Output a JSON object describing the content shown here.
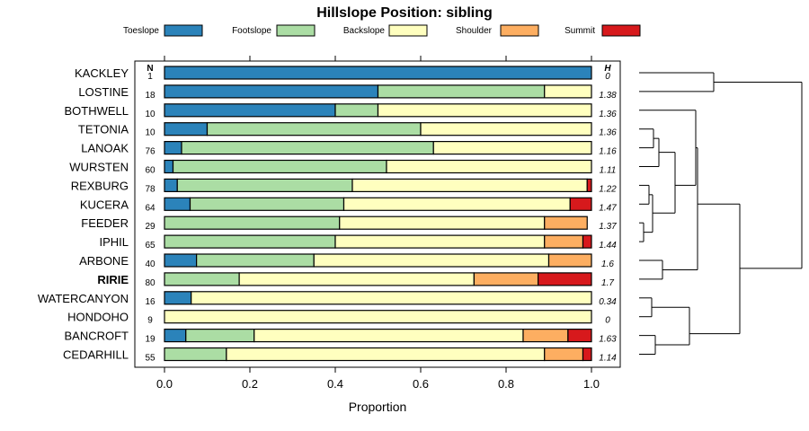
{
  "chart_data": {
    "type": "bar",
    "stacked": true,
    "orientation": "horizontal",
    "title": "Hillslope Position: sibling",
    "xlabel": "Proportion",
    "ylabel": "",
    "xlim": [
      0,
      1
    ],
    "x_ticks": [
      "0.0",
      "0.2",
      "0.4",
      "0.6",
      "0.8",
      "1.0"
    ],
    "highlighted_category": "RIRIE",
    "n_header": "N",
    "h_header": "H",
    "legend_position": "top",
    "series": [
      {
        "name": "Toeslope",
        "color": "#2b83ba"
      },
      {
        "name": "Footslope",
        "color": "#abdda4"
      },
      {
        "name": "Backslope",
        "color": "#ffffbf"
      },
      {
        "name": "Shoulder",
        "color": "#fdae61"
      },
      {
        "name": "Summit",
        "color": "#d7191c"
      }
    ],
    "categories": [
      "KACKLEY",
      "LOSTINE",
      "BOTHWELL",
      "TETONIA",
      "LANOAK",
      "WURSTEN",
      "REXBURG",
      "KUCERA",
      "FEEDER",
      "IPHIL",
      "ARBONE",
      "RIRIE",
      "WATERCANYON",
      "HONDOHO",
      "BANCROFT",
      "CEDARHILL"
    ],
    "n": [
      "1",
      "18",
      "10",
      "10",
      "76",
      "60",
      "78",
      "64",
      "29",
      "65",
      "40",
      "80",
      "16",
      "9",
      "19",
      "55"
    ],
    "h": [
      "0",
      "1.38",
      "1.36",
      "1.36",
      "1.16",
      "1.11",
      "1.22",
      "1.47",
      "1.37",
      "1.44",
      "1.6",
      "1.7",
      "0.34",
      "0",
      "1.63",
      "1.14"
    ],
    "values": [
      [
        1.0,
        0.0,
        0.0,
        0.0,
        0.0
      ],
      [
        0.5,
        0.39,
        0.11,
        0.0,
        0.0
      ],
      [
        0.4,
        0.1,
        0.5,
        0.0,
        0.0
      ],
      [
        0.1,
        0.5,
        0.4,
        0.0,
        0.0
      ],
      [
        0.04,
        0.59,
        0.37,
        0.0,
        0.0
      ],
      [
        0.02,
        0.5,
        0.48,
        0.0,
        0.0
      ],
      [
        0.03,
        0.41,
        0.55,
        0.0,
        0.01
      ],
      [
        0.06,
        0.36,
        0.53,
        0.0,
        0.05
      ],
      [
        0.0,
        0.41,
        0.48,
        0.1,
        0.0
      ],
      [
        0.0,
        0.4,
        0.49,
        0.09,
        0.02
      ],
      [
        0.075,
        0.275,
        0.55,
        0.1,
        0.0
      ],
      [
        0.0,
        0.175,
        0.55,
        0.15,
        0.125
      ],
      [
        0.0625,
        0.0,
        0.9375,
        0.0,
        0.0
      ],
      [
        0.0,
        0.0,
        1.0,
        0.0,
        0.0
      ],
      [
        0.05,
        0.16,
        0.63,
        0.105,
        0.055
      ],
      [
        0.0,
        0.145,
        0.745,
        0.09,
        0.02
      ]
    ],
    "dendrogram": {
      "method": "hierarchical clustering of profiles",
      "merges": [
        [
          "KACKLEY",
          "LOSTINE"
        ],
        [
          "TETONIA",
          "LANOAK"
        ],
        [
          "TETONIA+LANOAK",
          "WURSTEN"
        ],
        [
          "REXBURG",
          "KUCERA"
        ],
        [
          "FEEDER",
          "IPHIL"
        ],
        [
          "REXBURG+KUCERA",
          "FEEDER+IPHIL"
        ],
        [
          "TETONIA+LANOAK+WURSTEN",
          "REXBURG+KUCERA+FEEDER+IPHIL"
        ],
        [
          "BOTHWELL",
          "TETONIA..IPHIL"
        ],
        [
          "ARBONE",
          "RIRIE"
        ],
        [
          "BOTHWELL..IPHIL",
          "ARBONE+RIRIE"
        ],
        [
          "WATERCANYON",
          "HONDOHO"
        ],
        [
          "BANCROFT",
          "CEDARHILL"
        ],
        [
          "WATERCANYON+HONDOHO",
          "BANCROFT+CEDARHILL"
        ],
        [
          "BOTHWELL..RIRIE",
          "WATERCANYON..CEDARHILL"
        ],
        [
          "KACKLEY+LOSTINE",
          "BOTHWELL..CEDARHILL"
        ]
      ]
    }
  }
}
